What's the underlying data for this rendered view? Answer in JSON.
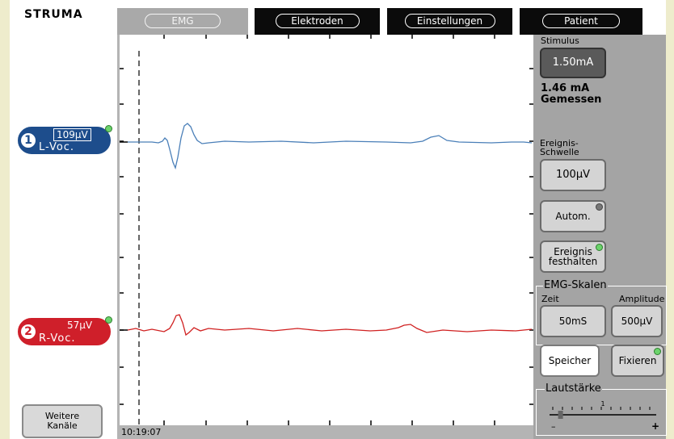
{
  "app": {
    "title": "STRUMA"
  },
  "tabs": [
    {
      "label": "EMG",
      "active": true
    },
    {
      "label": "Elektroden",
      "active": false
    },
    {
      "label": "Einstellungen",
      "active": false
    },
    {
      "label": "Patient",
      "active": false
    }
  ],
  "channels": [
    {
      "number": "1",
      "amplitude": "109µV",
      "name": "L-Voc.",
      "color": "#1d4d8c",
      "trace_color": "#4a7fb8"
    },
    {
      "number": "2",
      "amplitude": "57µV",
      "name": "R-Voc.",
      "color": "#cf1f2a",
      "trace_color": "#d02020"
    }
  ],
  "plot": {
    "timestamp": "10:19:07"
  },
  "stimulus": {
    "label": "Stimulus",
    "value": "1.50mA",
    "measured_value": "1.46 mA",
    "measured_label": "Gemessen"
  },
  "threshold": {
    "label_line1": "Ereignis-",
    "label_line2": "Schwelle",
    "value": "100µV"
  },
  "auto_button": "Autom.",
  "hold_event": {
    "line1": "Ereignis",
    "line2": "festhalten"
  },
  "scales": {
    "title": "EMG-Skalen",
    "time_label": "Zeit",
    "time_value": "50mS",
    "amplitude_label": "Amplitude",
    "amplitude_value": "500µV"
  },
  "memory_button": "Speicher",
  "freeze_button": "Fixieren",
  "volume": {
    "title": "Lautstärke",
    "minus": "–",
    "plus": "+",
    "tick_mark": "1",
    "level": 0.08
  },
  "more_channels": {
    "line1": "Weitere",
    "line2": "Kanäle"
  }
}
